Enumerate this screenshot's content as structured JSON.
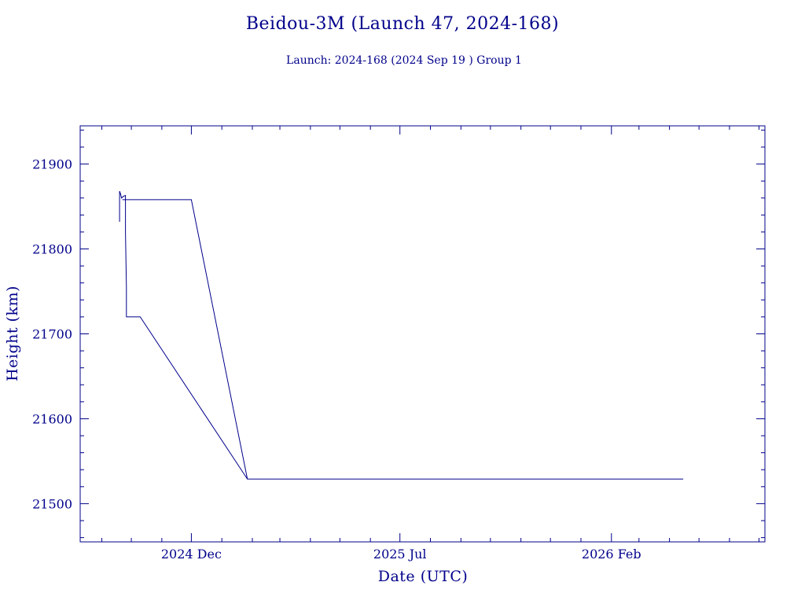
{
  "chart_data": {
    "type": "line",
    "title": "Beidou-3M (Launch 47, 2024-168)",
    "subtitle": "Launch: 2024-168  (2024 Sep 19 )  Group 1",
    "xlabel": "Date (UTC)",
    "ylabel": "Height (km)",
    "x_ticks": [
      {
        "date": "2024-12-01",
        "label": "2024 Dec"
      },
      {
        "date": "2025-07-01",
        "label": "2025 Jul"
      },
      {
        "date": "2026-02-01",
        "label": "2026 Feb"
      }
    ],
    "y_ticks": [
      21500,
      21600,
      21700,
      21800,
      21900
    ],
    "xlim": [
      "2024-08-10",
      "2026-07-07"
    ],
    "ylim": [
      21455,
      21945
    ],
    "grid": false,
    "series": [
      {
        "points": [
          {
            "x": "2024-09-19",
            "y": 21832
          },
          {
            "x": "2024-09-19",
            "y": 21868
          },
          {
            "x": "2024-09-20",
            "y": 21865
          },
          {
            "x": "2024-09-21",
            "y": 21860
          },
          {
            "x": "2024-09-23",
            "y": 21862
          },
          {
            "x": "2024-09-25",
            "y": 21863
          },
          {
            "x": "2024-09-25",
            "y": 21820
          },
          {
            "x": "2024-09-26",
            "y": 21755
          },
          {
            "x": "2024-09-26",
            "y": 21730
          },
          {
            "x": "2024-09-26",
            "y": 21720
          },
          {
            "x": "2024-10-07",
            "y": 21720
          },
          {
            "x": "2024-10-10",
            "y": 21720
          },
          {
            "x": "2025-01-27",
            "y": 21529
          },
          {
            "x": "2024-12-01",
            "y": 21858
          },
          {
            "x": "2024-09-22",
            "y": 21858
          },
          {
            "x": "2024-12-01",
            "y": 21858
          },
          {
            "x": "2025-01-27",
            "y": 21529
          },
          {
            "x": "2026-04-15",
            "y": 21529
          }
        ]
      }
    ]
  }
}
